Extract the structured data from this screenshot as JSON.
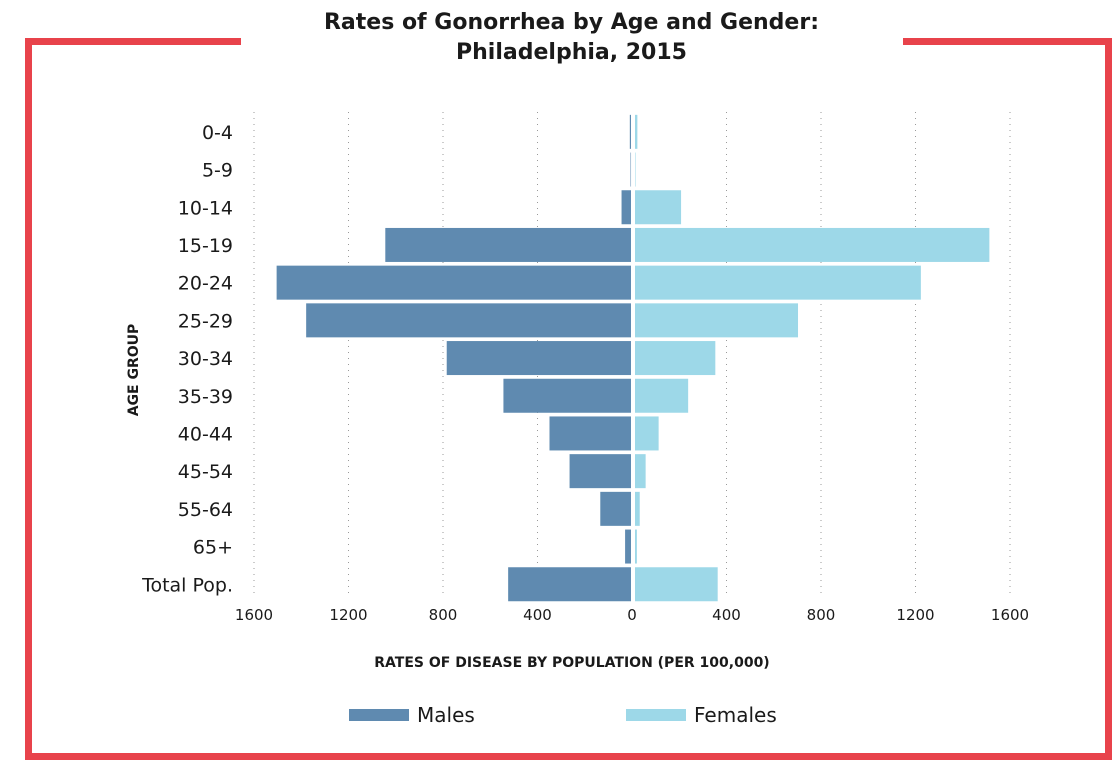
{
  "title_line1": "Rates of Gonorrhea by Age and Gender:",
  "title_line2": "Philadelphia, 2015",
  "colors": {
    "frame": "#e8434b",
    "males": "#5f8ab0",
    "females": "#9dd8e8"
  },
  "chart_data": {
    "type": "bar",
    "orientation": "horizontal-population-pyramid",
    "title": "Rates of Gonorrhea by Age and Gender: Philadelphia, 2015",
    "categories": [
      "0-4",
      "5-9",
      "10-14",
      "15-19",
      "20-24",
      "25-29",
      "30-34",
      "35-39",
      "40-44",
      "45-54",
      "55-64",
      "65+",
      "Total Pop."
    ],
    "series": [
      {
        "name": "Males",
        "values": [
          5,
          2,
          40,
          1040,
          1500,
          1375,
          780,
          540,
          345,
          260,
          130,
          25,
          520
        ]
      },
      {
        "name": "Females",
        "values": [
          10,
          2,
          195,
          1500,
          1210,
          690,
          340,
          225,
          100,
          45,
          20,
          8,
          350
        ]
      }
    ],
    "xlabel": "RATES OF DISEASE BY POPULATION (PER 100,000)",
    "ylabel": "AGE GROUP",
    "xlim": [
      -1600,
      1600
    ],
    "xticks": [
      "1600",
      "1200",
      "800",
      "400",
      "0",
      "400",
      "800",
      "1200",
      "1600"
    ],
    "grid": "dotted vertical",
    "legend_position": "bottom"
  }
}
